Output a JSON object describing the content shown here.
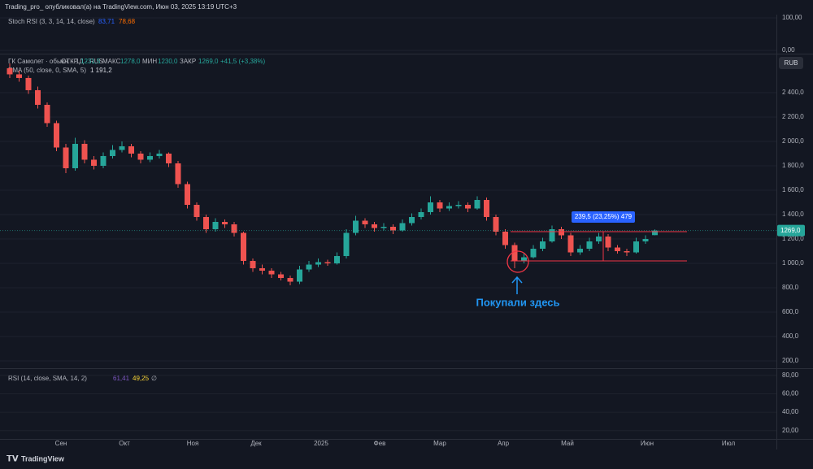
{
  "header": "Trading_pro_ опубликовал(а) на TradingView.com, Июн 03, 2025 13:19 UTC+3",
  "footer": "TradingView",
  "currency_button": "RUB",
  "stoch": {
    "legend": "Stoch RSI (3, 3, 14, 14, close)",
    "k": "83,71",
    "d": "78,68",
    "ylim": [
      -10,
      110
    ],
    "yticks": [
      {
        "value": 100,
        "label": "100,00"
      },
      {
        "value": 0,
        "label": "0,00"
      }
    ]
  },
  "rsi": {
    "legend": "RSI (14, close, SMA, 14, 2)",
    "rsi": "61,41",
    "ma": "49,25",
    "extra": "∅",
    "ylim": [
      11,
      86
    ],
    "yticks": [
      {
        "value": 80,
        "label": "80,00"
      },
      {
        "value": 60,
        "label": "60,00"
      },
      {
        "value": 40,
        "label": "40,00"
      },
      {
        "value": 20,
        "label": "20,00"
      }
    ]
  },
  "chart_data": {
    "type": "candlestick",
    "legend": {
      "symbol": "ГК Самолет · обыкн. · 1Д · RUS",
      "open_label": "ОТКР",
      "open": "1231,5",
      "high_label": "МАКС",
      "high": "1278,0",
      "low_label": "МИН",
      "low": "1230,0",
      "close_label": "ЗАКР",
      "close": "1269,0",
      "change": "+41,5 (+3,38%)"
    },
    "ema_legend": "EMA (50, close, 0, SMA, 5)",
    "ema_value": "1 191,2",
    "x_labels": [
      "Сен",
      "Окт",
      "Ноя",
      "Дек",
      "2025",
      "Фев",
      "Мар",
      "Апр",
      "Май",
      "Июн",
      "Июл"
    ],
    "ylim": [
      147,
      2713
    ],
    "yticks": [
      {
        "value": 200,
        "label": "200,0"
      },
      {
        "value": 400,
        "label": "400,0"
      },
      {
        "value": 600,
        "label": "600,0"
      },
      {
        "value": 800,
        "label": "800,0"
      },
      {
        "value": 1000,
        "label": "1 000,0"
      },
      {
        "value": 1200,
        "label": "1 200,0"
      },
      {
        "value": 1400,
        "label": "1 400,0"
      },
      {
        "value": 1600,
        "label": "1 600,0"
      },
      {
        "value": 1800,
        "label": "1 800,0"
      },
      {
        "value": 2000,
        "label": "2 000,0"
      },
      {
        "value": 2200,
        "label": "2 200,0"
      },
      {
        "value": 2400,
        "label": "2 400,0"
      }
    ],
    "up_color": "#26a69a",
    "down_color": "#ef5350",
    "candles": [
      [
        2600,
        2640,
        2520,
        2550
      ],
      [
        2550,
        2580,
        2490,
        2520
      ],
      [
        2520,
        2540,
        2390,
        2420
      ],
      [
        2420,
        2450,
        2270,
        2300
      ],
      [
        2300,
        2320,
        2120,
        2150
      ],
      [
        2150,
        2170,
        1920,
        1950
      ],
      [
        1950,
        1980,
        1740,
        1780
      ],
      [
        1780,
        2030,
        1760,
        1980
      ],
      [
        1980,
        2010,
        1820,
        1850
      ],
      [
        1850,
        1880,
        1770,
        1800
      ],
      [
        1800,
        1910,
        1780,
        1880
      ],
      [
        1880,
        1970,
        1860,
        1930
      ],
      [
        1930,
        2000,
        1910,
        1960
      ],
      [
        1960,
        1980,
        1870,
        1900
      ],
      [
        1900,
        1920,
        1820,
        1850
      ],
      [
        1850,
        1910,
        1830,
        1880
      ],
      [
        1880,
        1930,
        1860,
        1900
      ],
      [
        1900,
        1910,
        1790,
        1820
      ],
      [
        1820,
        1840,
        1620,
        1650
      ],
      [
        1650,
        1670,
        1450,
        1480
      ],
      [
        1480,
        1500,
        1350,
        1380
      ],
      [
        1380,
        1400,
        1250,
        1280
      ],
      [
        1280,
        1370,
        1260,
        1340
      ],
      [
        1340,
        1360,
        1290,
        1320
      ],
      [
        1320,
        1340,
        1220,
        1250
      ],
      [
        1250,
        1260,
        990,
        1020
      ],
      [
        1020,
        1040,
        930,
        960
      ],
      [
        960,
        990,
        910,
        940
      ],
      [
        940,
        960,
        880,
        910
      ],
      [
        910,
        930,
        860,
        880
      ],
      [
        880,
        900,
        820,
        850
      ],
      [
        850,
        980,
        830,
        950
      ],
      [
        950,
        1020,
        930,
        990
      ],
      [
        990,
        1040,
        970,
        1010
      ],
      [
        1010,
        1030,
        980,
        1000
      ],
      [
        1000,
        1090,
        990,
        1060
      ],
      [
        1060,
        1280,
        1040,
        1250
      ],
      [
        1250,
        1390,
        1230,
        1350
      ],
      [
        1350,
        1370,
        1290,
        1320
      ],
      [
        1320,
        1340,
        1260,
        1290
      ],
      [
        1290,
        1330,
        1270,
        1300
      ],
      [
        1300,
        1320,
        1240,
        1270
      ],
      [
        1270,
        1360,
        1260,
        1330
      ],
      [
        1330,
        1410,
        1310,
        1380
      ],
      [
        1380,
        1450,
        1360,
        1420
      ],
      [
        1420,
        1550,
        1400,
        1500
      ],
      [
        1500,
        1520,
        1420,
        1450
      ],
      [
        1450,
        1500,
        1430,
        1470
      ],
      [
        1470,
        1510,
        1450,
        1480
      ],
      [
        1480,
        1500,
        1420,
        1450
      ],
      [
        1450,
        1550,
        1440,
        1520
      ],
      [
        1520,
        1540,
        1350,
        1380
      ],
      [
        1380,
        1400,
        1230,
        1260
      ],
      [
        1260,
        1280,
        1120,
        1150
      ],
      [
        1150,
        1170,
        960,
        1020
      ],
      [
        1020,
        1080,
        1000,
        1050
      ],
      [
        1050,
        1150,
        1040,
        1120
      ],
      [
        1120,
        1210,
        1100,
        1180
      ],
      [
        1180,
        1310,
        1170,
        1280
      ],
      [
        1280,
        1300,
        1200,
        1230
      ],
      [
        1230,
        1250,
        1060,
        1090
      ],
      [
        1090,
        1150,
        1070,
        1120
      ],
      [
        1120,
        1210,
        1100,
        1180
      ],
      [
        1180,
        1250,
        1160,
        1220
      ],
      [
        1220,
        1240,
        1100,
        1130
      ],
      [
        1130,
        1150,
        1080,
        1100
      ],
      [
        1100,
        1120,
        1060,
        1090
      ],
      [
        1090,
        1210,
        1080,
        1180
      ],
      [
        1180,
        1230,
        1160,
        1200
      ],
      [
        1231.5,
        1278,
        1230,
        1269
      ]
    ],
    "last_price": {
      "value": 1269,
      "label": "1269,0"
    },
    "measure": {
      "label": "239,5 (23,25%) 479",
      "high": 1260,
      "low": 1020.5
    },
    "annotation": "Покупали здесь"
  }
}
